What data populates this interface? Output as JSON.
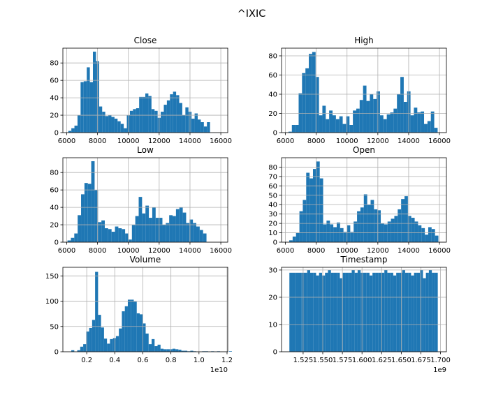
{
  "figure_title": "^IXIC",
  "colors": {
    "bar": "#1f77b4",
    "grid": "#b0b0b0",
    "frame": "#000000",
    "background": "#ffffff"
  },
  "chart_data": [
    {
      "type": "bar",
      "title": "Close",
      "xlim": [
        5750,
        16450
      ],
      "ylim": [
        0,
        97
      ],
      "xticks": [
        6000,
        8000,
        10000,
        12000,
        14000,
        16000
      ],
      "xtick_labels": [
        "6000",
        "8000",
        "10000",
        "12000",
        "14000",
        "16000"
      ],
      "yticks": [
        0,
        20,
        40,
        60,
        80
      ],
      "ytick_labels": [
        "0",
        "20",
        "40",
        "60",
        "80"
      ],
      "offset_label": "",
      "bin_start": 6100,
      "bin_width": 200,
      "values": [
        2,
        5,
        8,
        20,
        58,
        59,
        75,
        58,
        93,
        82,
        30,
        24,
        19,
        20,
        18,
        16,
        13,
        10,
        5,
        20,
        25,
        27,
        28,
        41,
        41,
        45,
        42,
        27,
        25,
        17,
        24,
        32,
        37,
        44,
        47,
        43,
        34,
        20,
        29,
        24,
        16,
        22,
        15,
        12,
        7,
        12
      ]
    },
    {
      "type": "bar",
      "title": "High",
      "xlim": [
        5750,
        16450
      ],
      "ylim": [
        0,
        88
      ],
      "xticks": [
        6000,
        8000,
        10000,
        12000,
        14000,
        16000
      ],
      "xtick_labels": [
        "6000",
        "8000",
        "10000",
        "12000",
        "14000",
        "16000"
      ],
      "yticks": [
        0,
        20,
        40,
        60,
        80
      ],
      "ytick_labels": [
        "0",
        "20",
        "40",
        "60",
        "80"
      ],
      "offset_label": "",
      "bin_start": 6200,
      "bin_width": 220,
      "values": [
        1,
        8,
        8,
        41,
        62,
        67,
        82,
        84,
        58,
        18,
        28,
        14,
        23,
        18,
        14,
        17,
        9,
        17,
        8,
        23,
        25,
        34,
        49,
        33,
        40,
        35,
        43,
        18,
        14,
        19,
        21,
        25,
        40,
        58,
        32,
        43,
        18,
        26,
        21,
        22,
        9,
        12,
        22,
        5
      ]
    },
    {
      "type": "bar",
      "title": "Low",
      "xlim": [
        5750,
        16450
      ],
      "ylim": [
        0,
        97
      ],
      "xticks": [
        6000,
        8000,
        10000,
        12000,
        14000,
        16000
      ],
      "xtick_labels": [
        "6000",
        "8000",
        "10000",
        "12000",
        "14000",
        "16000"
      ],
      "yticks": [
        0,
        20,
        40,
        60,
        80
      ],
      "ytick_labels": [
        "0",
        "20",
        "40",
        "60",
        "80"
      ],
      "offset_label": "",
      "bin_start": 6050,
      "bin_width": 220,
      "values": [
        2,
        5,
        10,
        31,
        55,
        68,
        67,
        93,
        60,
        23,
        25,
        16,
        15,
        12,
        18,
        16,
        15,
        10,
        3,
        20,
        30,
        52,
        33,
        42,
        28,
        40,
        28,
        28,
        20,
        22,
        31,
        30,
        38,
        40,
        34,
        22,
        26,
        22,
        18,
        14,
        10
      ]
    },
    {
      "type": "bar",
      "title": "Open",
      "xlim": [
        5750,
        16450
      ],
      "ylim": [
        0,
        90
      ],
      "xticks": [
        6000,
        8000,
        10000,
        12000,
        14000,
        16000
      ],
      "xtick_labels": [
        "6000",
        "8000",
        "10000",
        "12000",
        "14000",
        "16000"
      ],
      "yticks": [
        0,
        10,
        20,
        30,
        40,
        50,
        60,
        70,
        80
      ],
      "ytick_labels": [
        "0",
        "10",
        "20",
        "30",
        "40",
        "50",
        "60",
        "70",
        "80"
      ],
      "offset_label": "",
      "bin_start": 6250,
      "bin_width": 220,
      "values": [
        2,
        6,
        10,
        33,
        45,
        74,
        68,
        78,
        86,
        68,
        19,
        23,
        19,
        16,
        21,
        15,
        11,
        18,
        11,
        22,
        33,
        37,
        51,
        40,
        45,
        35,
        34,
        20,
        19,
        22,
        25,
        28,
        35,
        46,
        49,
        28,
        26,
        22,
        18,
        15,
        8,
        16,
        14,
        7
      ]
    },
    {
      "type": "bar",
      "title": "Volume",
      "xlim": [
        0.03,
        1.205
      ],
      "ylim": [
        0,
        167
      ],
      "xticks": [
        0.2,
        0.4,
        0.6,
        0.8,
        1.0,
        1.2
      ],
      "xtick_labels": [
        "0.2",
        "0.4",
        "0.6",
        "0.8",
        "1.0",
        "1.2"
      ],
      "yticks": [
        0,
        50,
        100,
        150
      ],
      "ytick_labels": [
        "0",
        "50",
        "100",
        "150"
      ],
      "offset_label": "1e10",
      "bin_start": 0.09,
      "bin_width": 0.0212,
      "values": [
        3,
        0,
        3,
        10,
        15,
        40,
        47,
        63,
        158,
        73,
        48,
        26,
        16,
        25,
        27,
        31,
        46,
        80,
        90,
        103,
        103,
        99,
        76,
        74,
        56,
        36,
        15,
        25,
        11,
        14,
        6,
        5,
        5,
        5,
        6,
        5,
        4,
        2,
        2,
        1,
        2,
        1,
        0,
        0,
        1,
        1,
        0,
        1,
        0,
        1,
        0,
        0,
        0,
        1
      ]
    },
    {
      "type": "bar",
      "title": "Timestamp",
      "xlim": [
        1.4975,
        1.7075
      ],
      "ylim": [
        0,
        31
      ],
      "xticks": [
        1.525,
        1.55,
        1.575,
        1.6,
        1.625,
        1.65,
        1.675,
        1.7
      ],
      "xtick_labels": [
        "1.525",
        "1.550",
        "1.575",
        "1.600",
        "1.625",
        "1.650",
        "1.675",
        "1.700"
      ],
      "yticks": [
        0,
        10,
        20,
        30
      ],
      "ytick_labels": [
        "0",
        "10",
        "20",
        "30"
      ],
      "offset_label": "1e9",
      "bin_start": 1.5075,
      "bin_width": 0.00378,
      "values": [
        29,
        29,
        29,
        29,
        29,
        29,
        30,
        29,
        29,
        28,
        29,
        28,
        29,
        30,
        29,
        29,
        29,
        27,
        29,
        29,
        29,
        30,
        29,
        30,
        29,
        29,
        29,
        28,
        29,
        29,
        29,
        29,
        30,
        29,
        29,
        28,
        29,
        29,
        30,
        29,
        29,
        28,
        29,
        29,
        30,
        27,
        29,
        30,
        29,
        29
      ]
    }
  ]
}
